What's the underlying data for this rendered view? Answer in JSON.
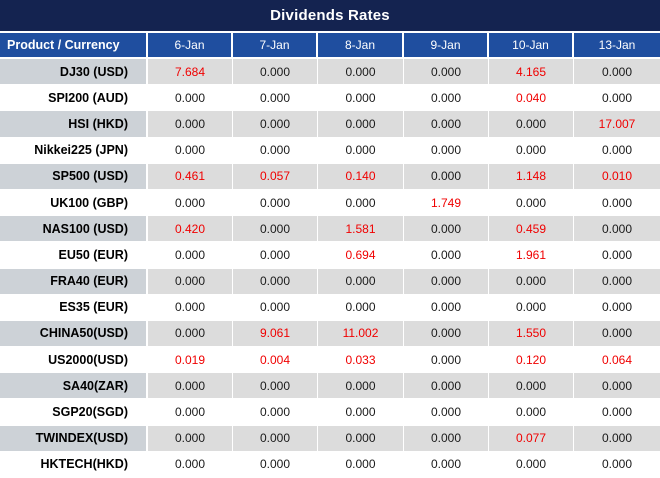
{
  "title": "Dividends Rates",
  "colors": {
    "title_bg": "#142350",
    "header_bg": "#1F4E9F",
    "header_text": "#FFFFFF",
    "row_shade": "#DCDCDC",
    "label_shade": "#CDD2D7",
    "value_red": "#F00000",
    "value_black": "#1A1A1A"
  },
  "chart_data": {
    "type": "table",
    "title": "Dividends Rates",
    "columns": [
      "Product / Currency",
      "6-Jan",
      "7-Jan",
      "8-Jan",
      "9-Jan",
      "10-Jan",
      "13-Jan"
    ],
    "rows": [
      {
        "product": "DJ30 (USD)",
        "values": [
          "7.684",
          "0.000",
          "0.000",
          "0.000",
          "4.165",
          "0.000"
        ],
        "red": [
          true,
          false,
          false,
          false,
          true,
          false
        ]
      },
      {
        "product": "SPI200 (AUD)",
        "values": [
          "0.000",
          "0.000",
          "0.000",
          "0.000",
          "0.040",
          "0.000"
        ],
        "red": [
          false,
          false,
          false,
          false,
          true,
          false
        ]
      },
      {
        "product": "HSI (HKD)",
        "values": [
          "0.000",
          "0.000",
          "0.000",
          "0.000",
          "0.000",
          "17.007"
        ],
        "red": [
          false,
          false,
          false,
          false,
          false,
          true
        ]
      },
      {
        "product": "Nikkei225 (JPN)",
        "values": [
          "0.000",
          "0.000",
          "0.000",
          "0.000",
          "0.000",
          "0.000"
        ],
        "red": [
          false,
          false,
          false,
          false,
          false,
          false
        ]
      },
      {
        "product": "SP500 (USD)",
        "values": [
          "0.461",
          "0.057",
          "0.140",
          "0.000",
          "1.148",
          "0.010"
        ],
        "red": [
          true,
          true,
          true,
          false,
          true,
          true
        ]
      },
      {
        "product": "UK100 (GBP)",
        "values": [
          "0.000",
          "0.000",
          "0.000",
          "1.749",
          "0.000",
          "0.000"
        ],
        "red": [
          false,
          false,
          false,
          true,
          false,
          false
        ]
      },
      {
        "product": "NAS100 (USD)",
        "values": [
          "0.420",
          "0.000",
          "1.581",
          "0.000",
          "0.459",
          "0.000"
        ],
        "red": [
          true,
          false,
          true,
          false,
          true,
          false
        ]
      },
      {
        "product": "EU50 (EUR)",
        "values": [
          "0.000",
          "0.000",
          "0.694",
          "0.000",
          "1.961",
          "0.000"
        ],
        "red": [
          false,
          false,
          true,
          false,
          true,
          false
        ]
      },
      {
        "product": "FRA40 (EUR)",
        "values": [
          "0.000",
          "0.000",
          "0.000",
          "0.000",
          "0.000",
          "0.000"
        ],
        "red": [
          false,
          false,
          false,
          false,
          false,
          false
        ]
      },
      {
        "product": "ES35 (EUR)",
        "values": [
          "0.000",
          "0.000",
          "0.000",
          "0.000",
          "0.000",
          "0.000"
        ],
        "red": [
          false,
          false,
          false,
          false,
          false,
          false
        ]
      },
      {
        "product": "CHINA50(USD)",
        "values": [
          "0.000",
          "9.061",
          "11.002",
          "0.000",
          "1.550",
          "0.000"
        ],
        "red": [
          false,
          true,
          true,
          false,
          true,
          false
        ]
      },
      {
        "product": "US2000(USD)",
        "values": [
          "0.019",
          "0.004",
          "0.033",
          "0.000",
          "0.120",
          "0.064"
        ],
        "red": [
          true,
          true,
          true,
          false,
          true,
          true
        ]
      },
      {
        "product": "SA40(ZAR)",
        "values": [
          "0.000",
          "0.000",
          "0.000",
          "0.000",
          "0.000",
          "0.000"
        ],
        "red": [
          false,
          false,
          false,
          false,
          false,
          false
        ]
      },
      {
        "product": "SGP20(SGD)",
        "values": [
          "0.000",
          "0.000",
          "0.000",
          "0.000",
          "0.000",
          "0.000"
        ],
        "red": [
          false,
          false,
          false,
          false,
          false,
          false
        ]
      },
      {
        "product": "TWINDEX(USD)",
        "values": [
          "0.000",
          "0.000",
          "0.000",
          "0.000",
          "0.077",
          "0.000"
        ],
        "red": [
          false,
          false,
          false,
          false,
          true,
          false
        ]
      },
      {
        "product": "HKTECH(HKD)",
        "values": [
          "0.000",
          "0.000",
          "0.000",
          "0.000",
          "0.000",
          "0.000"
        ],
        "red": [
          false,
          false,
          false,
          false,
          false,
          false
        ]
      }
    ]
  }
}
